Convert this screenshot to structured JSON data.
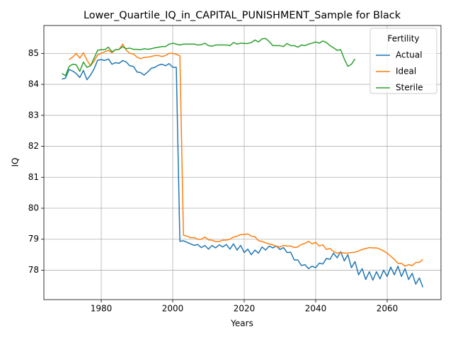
{
  "chart_data": {
    "type": "line",
    "title": "Lower_Quartile_IQ_in_CAPITAL_PUNISHMENT_Sample for Black",
    "x_label": "Years",
    "y_label": "IQ",
    "legend_title": "Fertility",
    "legend": "upper right",
    "grid": true,
    "xlim": [
      1963.95,
      2075.05
    ],
    "xticks": [
      1980,
      2000,
      2020,
      2040,
      2060
    ],
    "ylim": [
      77.05,
      85.9
    ],
    "yticks": [
      78,
      79,
      80,
      81,
      82,
      83,
      84,
      85
    ],
    "x": [
      1969,
      1970,
      1971,
      1972,
      1973,
      1974,
      1975,
      1976,
      1977,
      1978,
      1979,
      1980,
      1981,
      1982,
      1983,
      1984,
      1985,
      1986,
      1987,
      1988,
      1989,
      1990,
      1991,
      1992,
      1993,
      1994,
      1995,
      1996,
      1997,
      1998,
      1999,
      2000,
      2001,
      2002,
      2003,
      2004,
      2005,
      2006,
      2007,
      2008,
      2009,
      2010,
      2011,
      2012,
      2013,
      2014,
      2015,
      2016,
      2017,
      2018,
      2019,
      2020,
      2021,
      2022,
      2023,
      2024,
      2025,
      2026,
      2027,
      2028,
      2029,
      2030,
      2031,
      2032,
      2033,
      2034,
      2035,
      2036,
      2037,
      2038,
      2039,
      2040,
      2041,
      2042,
      2043,
      2044,
      2045,
      2046,
      2047,
      2048,
      2049,
      2050,
      2051,
      2052,
      2053,
      2054,
      2055,
      2056,
      2057,
      2058,
      2059,
      2060,
      2061,
      2062,
      2063,
      2064,
      2065,
      2066,
      2067,
      2068,
      2069,
      2070
    ],
    "series": [
      {
        "name": "Actual",
        "color": "#1f77b4",
        "values": [
          84.17,
          84.2,
          84.48,
          84.43,
          84.35,
          84.22,
          84.45,
          84.15,
          84.3,
          84.5,
          84.78,
          84.8,
          84.77,
          84.82,
          84.65,
          84.7,
          84.68,
          84.77,
          84.72,
          84.6,
          84.58,
          84.4,
          84.38,
          84.3,
          84.4,
          84.52,
          84.55,
          84.62,
          84.65,
          84.6,
          84.67,
          84.55,
          84.55,
          78.93,
          78.95,
          78.9,
          78.85,
          78.8,
          78.83,
          78.73,
          78.8,
          78.68,
          78.8,
          78.72,
          78.82,
          78.75,
          78.83,
          78.68,
          78.85,
          78.65,
          78.8,
          78.57,
          78.68,
          78.5,
          78.65,
          78.55,
          78.75,
          78.65,
          78.78,
          78.72,
          78.78,
          78.67,
          78.73,
          78.57,
          78.58,
          78.33,
          78.33,
          78.15,
          78.18,
          78.05,
          78.13,
          78.08,
          78.23,
          78.2,
          78.38,
          78.35,
          78.55,
          78.4,
          78.6,
          78.3,
          78.5,
          78.08,
          78.28,
          77.85,
          78.05,
          77.7,
          77.95,
          77.68,
          77.95,
          77.72,
          78.0,
          77.8,
          78.1,
          77.85,
          78.13,
          77.8,
          78.05,
          77.7,
          77.9,
          77.55,
          77.75,
          77.45
        ]
      },
      {
        "name": "Ideal",
        "color": "#ff7f0e",
        "values": [
          null,
          null,
          84.8,
          84.88,
          85.0,
          84.85,
          85.02,
          84.78,
          84.6,
          84.75,
          84.95,
          85.0,
          85.05,
          85.1,
          85.02,
          85.12,
          85.13,
          85.3,
          85.1,
          85.0,
          84.98,
          84.88,
          84.83,
          84.87,
          84.88,
          84.9,
          84.93,
          84.93,
          84.9,
          84.93,
          85.0,
          85.0,
          84.97,
          84.92,
          79.13,
          79.1,
          79.05,
          79.05,
          79.0,
          79.0,
          79.07,
          78.98,
          78.97,
          78.92,
          78.93,
          78.97,
          78.97,
          79.0,
          79.07,
          79.1,
          79.15,
          79.15,
          79.17,
          79.1,
          79.08,
          78.95,
          78.93,
          78.88,
          78.85,
          78.82,
          78.77,
          78.75,
          78.8,
          78.78,
          78.78,
          78.73,
          78.75,
          78.83,
          78.87,
          78.93,
          78.85,
          78.9,
          78.78,
          78.82,
          78.67,
          78.7,
          78.6,
          78.55,
          78.58,
          78.55,
          78.55,
          78.57,
          78.58,
          78.62,
          78.67,
          78.7,
          78.73,
          78.72,
          78.72,
          78.68,
          78.62,
          78.55,
          78.45,
          78.35,
          78.22,
          78.22,
          78.13,
          78.18,
          78.15,
          78.25,
          78.25,
          78.35
        ]
      },
      {
        "name": "Sterile",
        "color": "#2ca02c",
        "values": [
          84.35,
          84.28,
          84.58,
          84.65,
          84.63,
          84.42,
          84.72,
          84.55,
          84.6,
          84.85,
          85.1,
          85.12,
          85.12,
          85.2,
          85.05,
          85.12,
          85.13,
          85.22,
          85.15,
          85.17,
          85.13,
          85.13,
          85.12,
          85.15,
          85.13,
          85.15,
          85.18,
          85.2,
          85.22,
          85.22,
          85.3,
          85.33,
          85.3,
          85.27,
          85.3,
          85.3,
          85.3,
          85.3,
          85.27,
          85.28,
          85.33,
          85.25,
          85.23,
          85.27,
          85.27,
          85.27,
          85.27,
          85.25,
          85.35,
          85.3,
          85.33,
          85.32,
          85.32,
          85.35,
          85.43,
          85.37,
          85.47,
          85.48,
          85.38,
          85.25,
          85.25,
          85.25,
          85.22,
          85.32,
          85.25,
          85.25,
          85.2,
          85.27,
          85.25,
          85.3,
          85.33,
          85.37,
          85.33,
          85.4,
          85.35,
          85.25,
          85.18,
          85.1,
          85.12,
          84.82,
          84.58,
          84.65,
          84.82,
          null,
          null,
          null,
          null,
          null,
          null,
          null,
          null,
          null,
          null,
          null,
          null,
          null,
          null,
          null,
          null,
          null,
          null,
          null
        ]
      }
    ]
  }
}
